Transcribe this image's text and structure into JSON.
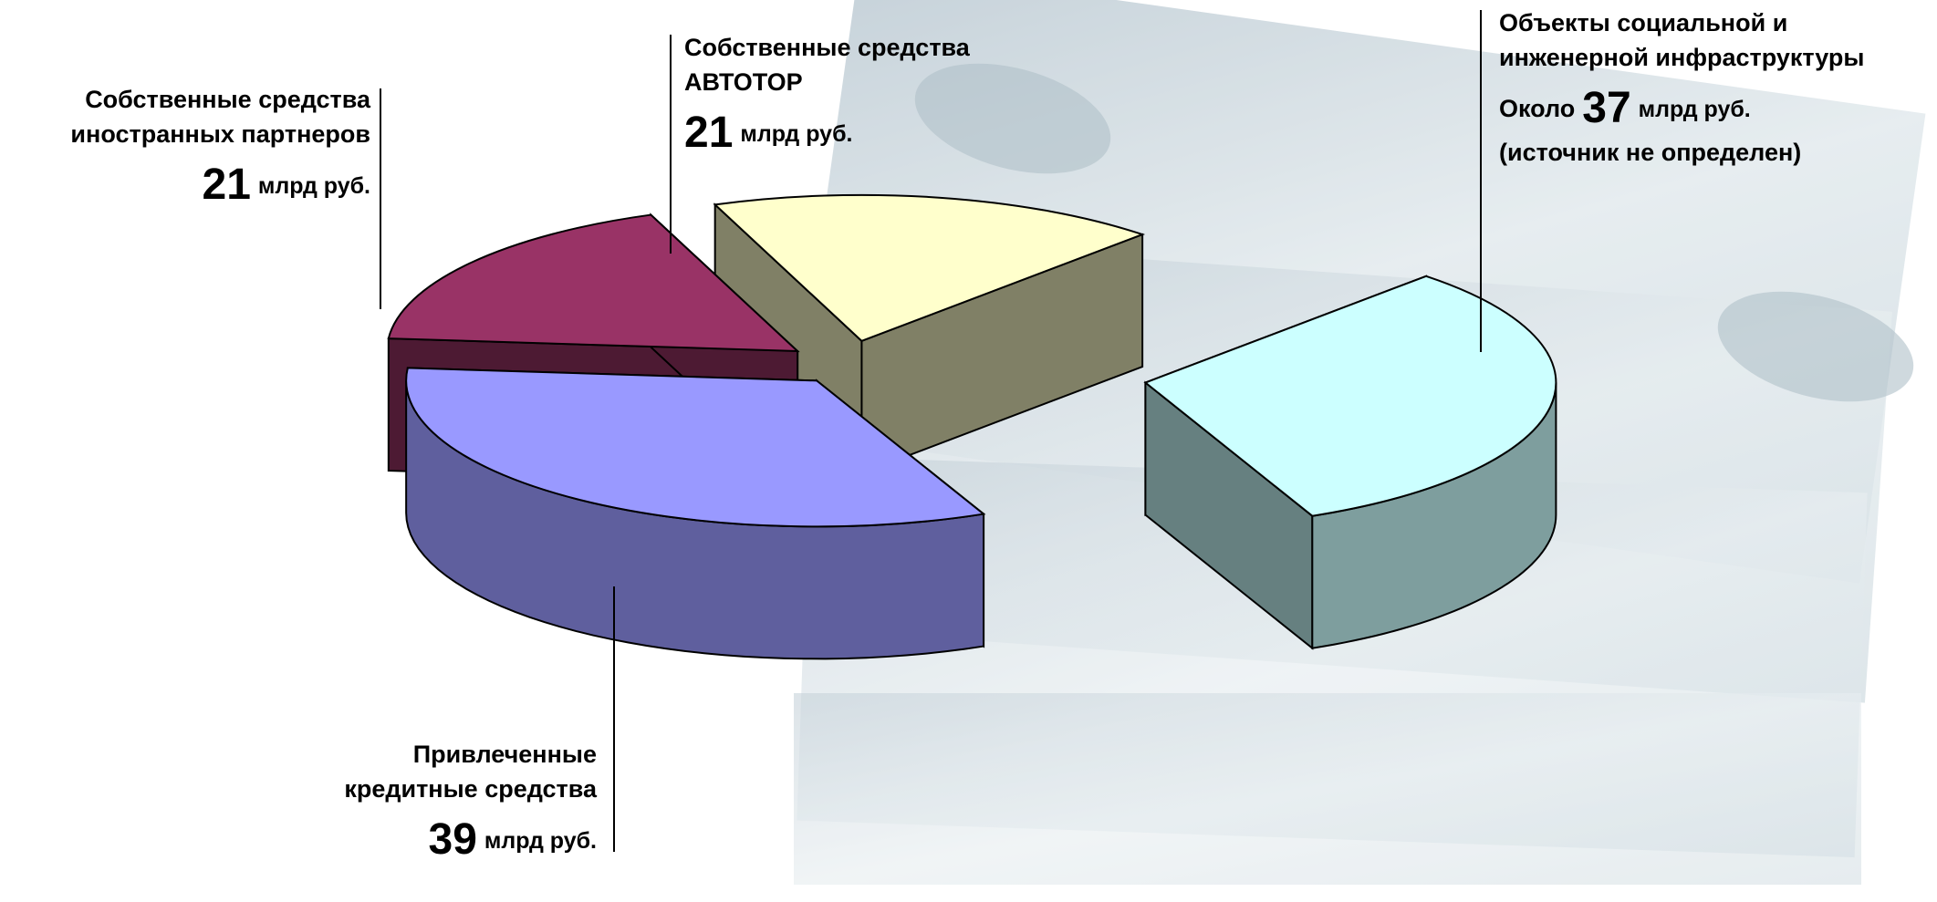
{
  "chart_data": {
    "type": "pie3d",
    "slices": [
      {
        "name": [
          "Собственные средства",
          "иностранных партнеров"
        ],
        "value": 21,
        "unit": "млрд руб.",
        "color": "#993366"
      },
      {
        "name": [
          "Собственные средства",
          "АВТОТОР"
        ],
        "value": 21,
        "unit": "млрд руб.",
        "color": "#ffffcc"
      },
      {
        "name": [
          "Объекты социальной и",
          "инженерной инфраструктуры"
        ],
        "prefix": "Около",
        "value": 37,
        "unit": "млрд руб.",
        "note": "(источник не определен)",
        "color": "#ccffff"
      },
      {
        "name": [
          "Привлеченные",
          "кредитные средства"
        ],
        "value": 39,
        "unit": "млрд руб.",
        "color": "#9999ff"
      }
    ]
  }
}
